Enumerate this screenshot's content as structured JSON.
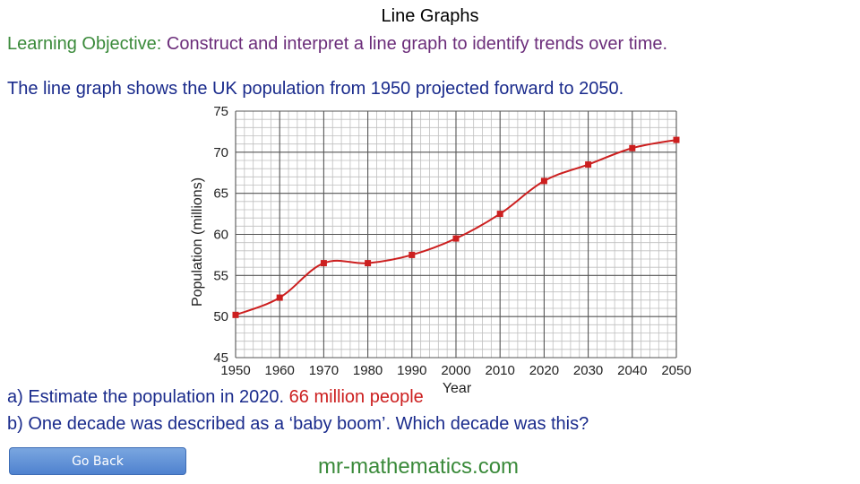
{
  "header": {
    "title": "Line Graphs",
    "objective_label": "Learning Objective:",
    "objective_text": "Construct and interpret a line graph to identify trends over time.",
    "intro": "The line graph shows the UK population from 1950 projected forward to 2050."
  },
  "questions": {
    "a": "a) Estimate the population in 2020.",
    "a_answer": "66 million people",
    "b": "b) One decade was described as a ‘baby boom’.  Which decade was this?"
  },
  "buttons": {
    "go_back": "Go Back"
  },
  "footer": {
    "site": "mr-mathematics.com"
  },
  "colors": {
    "line": "#cc1f1f",
    "grid_major": "#555555",
    "grid_minor": "#bfbfbf"
  },
  "chart_data": {
    "type": "line",
    "title": "",
    "xlabel": "Year",
    "ylabel": "Population (millions)",
    "x": [
      1950,
      1960,
      1970,
      1980,
      1990,
      2000,
      2010,
      2020,
      2030,
      2040,
      2050
    ],
    "series": [
      {
        "values": [
          50.2,
          52.3,
          56.5,
          56.5,
          57.5,
          59.5,
          62.5,
          66.5,
          68.5,
          70.5,
          71.5
        ]
      }
    ],
    "xlim": [
      1950,
      2050
    ],
    "ylim": [
      45,
      75
    ],
    "x_ticks": [
      "1950",
      "1960",
      "1970",
      "1980",
      "1990",
      "2000",
      "2010",
      "2020",
      "2030",
      "2040",
      "2050"
    ],
    "y_ticks": [
      "45",
      "50",
      "55",
      "60",
      "65",
      "70",
      "75"
    ],
    "grid": true,
    "legend": "none",
    "markers": "square"
  }
}
